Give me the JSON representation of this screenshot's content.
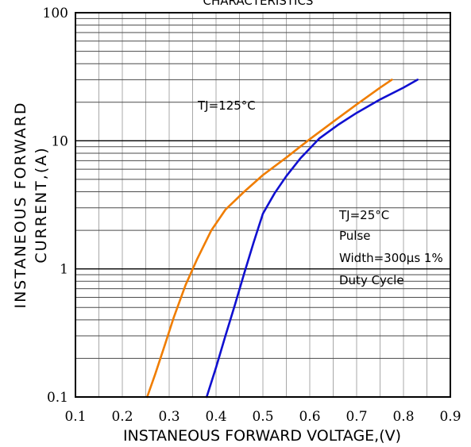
{
  "chart_data": {
    "type": "line",
    "title": "CHARACTERISTICS",
    "xlabel": "INSTANEOUS FORWARD VOLTAGE,(V)",
    "ylabel_line1": "INSTANEOUS FORWARD",
    "ylabel_line2": "CURRENT,(A)",
    "xlim": [
      0.1,
      0.9
    ],
    "ylim": [
      0.1,
      100
    ],
    "yscale": "log",
    "grid": true,
    "x_ticks": [
      "0.1",
      "0.2",
      "0.3",
      "0.4",
      "0.5",
      "0.6",
      "0.7",
      "0.8",
      "0.9"
    ],
    "y_ticks": [
      "0.1",
      "1",
      "10",
      "100"
    ],
    "annotations": {
      "tj125": "TJ=125°C",
      "tj25": "TJ=25°C",
      "pulse": "Pulse",
      "width": "Width=300μs 1%",
      "duty": "Duty Cycle"
    },
    "series": [
      {
        "color": "#f07d00",
        "x": [
          0.253,
          0.27,
          0.29,
          0.31,
          0.335,
          0.36,
          0.39,
          0.42,
          0.46,
          0.5,
          0.55,
          0.6,
          0.65,
          0.7,
          0.75,
          0.775
        ],
        "y": [
          0.1,
          0.15,
          0.25,
          0.42,
          0.75,
          1.2,
          2.0,
          2.9,
          4.0,
          5.4,
          7.4,
          10.3,
          14.1,
          19.2,
          26.0,
          30.0
        ]
      },
      {
        "color": "#1010d0",
        "x": [
          0.38,
          0.4,
          0.42,
          0.44,
          0.46,
          0.48,
          0.5,
          0.525,
          0.55,
          0.58,
          0.62,
          0.66,
          0.7,
          0.75,
          0.8,
          0.83
        ],
        "y": [
          0.1,
          0.17,
          0.3,
          0.52,
          0.92,
          1.6,
          2.7,
          3.9,
          5.3,
          7.3,
          10.4,
          13.3,
          16.5,
          21.0,
          26.0,
          30.0
        ]
      }
    ]
  }
}
